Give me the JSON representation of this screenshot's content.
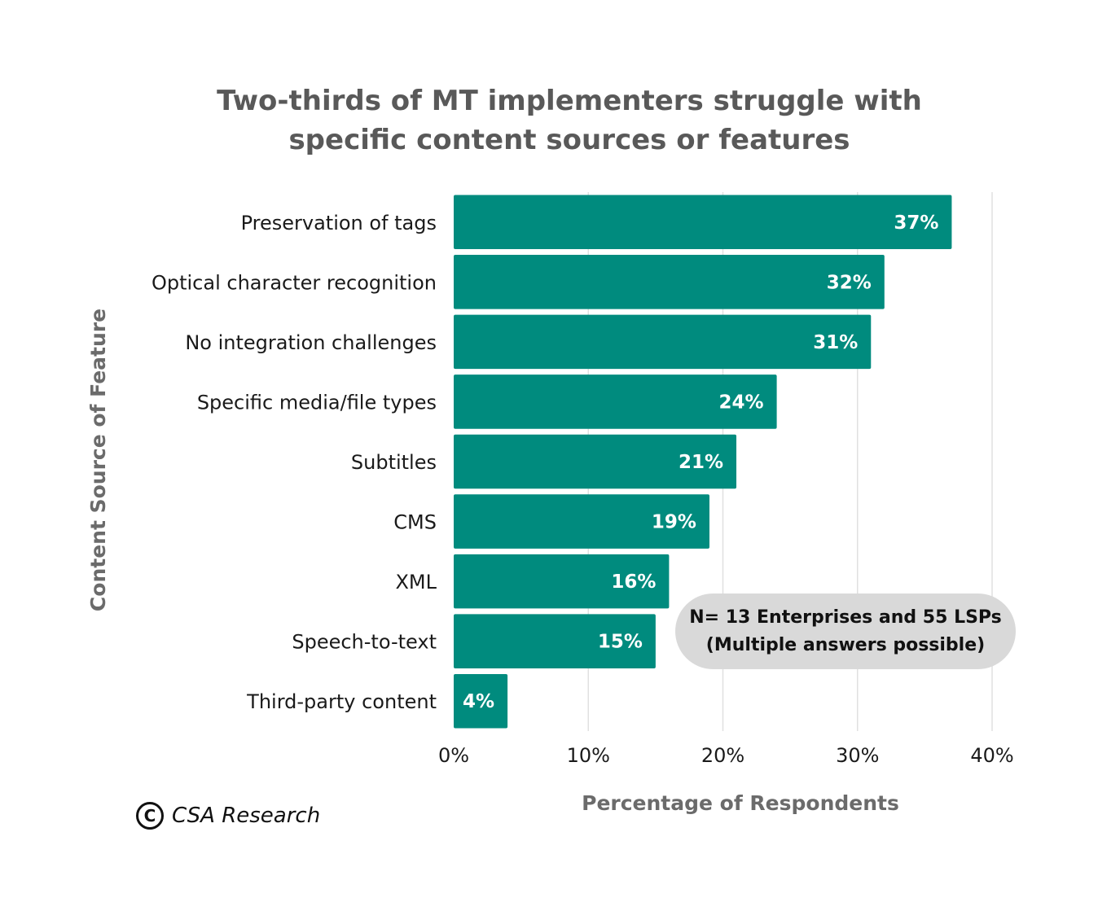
{
  "title": [
    "Two-thirds of MT implementers struggle with",
    "specific content sources or features"
  ],
  "note": [
    "N= 13 Enterprises and 55 LSPs",
    "(Multiple answers possible)"
  ],
  "credit": {
    "symbol": "C",
    "name": "CSA Research"
  },
  "chart_data": {
    "type": "bar",
    "orientation": "horizontal",
    "categories": [
      "Preservation of tags",
      "Optical character recognition",
      "No integration challenges",
      "Specific media/file types",
      "Subtitles",
      "CMS",
      "XML",
      "Speech-to-text",
      "Third-party content"
    ],
    "values": [
      37,
      32,
      31,
      24,
      21,
      19,
      16,
      15,
      4
    ],
    "data_labels": [
      "37%",
      "32%",
      "31%",
      "24%",
      "21%",
      "19%",
      "16%",
      "15%",
      "4%"
    ],
    "xlabel": "Percentage of Respondents",
    "ylabel": "Content Source of Feature",
    "xlim": [
      0,
      40
    ],
    "xticks": [
      0,
      10,
      20,
      30,
      40
    ],
    "xtick_labels": [
      "0%",
      "10%",
      "20%",
      "30%",
      "40%"
    ],
    "grid": "vertical",
    "bar_color": "#008b7e",
    "grid_color": "#e0e0e0"
  }
}
